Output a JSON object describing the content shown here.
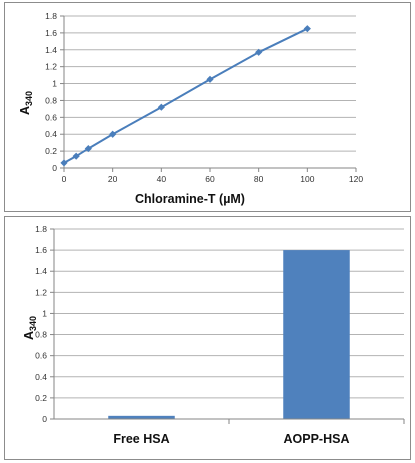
{
  "chart_data": [
    {
      "type": "line",
      "x": [
        0,
        5,
        10,
        20,
        40,
        60,
        80,
        100
      ],
      "series": [
        {
          "values": [
            0.06,
            0.14,
            0.23,
            0.4,
            0.72,
            1.05,
            1.37,
            1.65
          ]
        }
      ],
      "xlabel": "Chloramine-T (µM)",
      "ylabel_main": "A",
      "ylabel_sub": "340",
      "xlim": [
        0,
        120
      ],
      "ylim": [
        0,
        1.8
      ],
      "xticks": [
        "0",
        "20",
        "40",
        "60",
        "80",
        "100",
        "120"
      ],
      "yticks": [
        "0",
        "0.2",
        "0.4",
        "0.6",
        "0.8",
        "1",
        "1.2",
        "1.4",
        "1.6",
        "1.8"
      ],
      "grid": true,
      "colors": {
        "series": "#4a7ebb",
        "grid": "#b3b3b3",
        "axis": "#868686"
      }
    },
    {
      "type": "bar",
      "categories": [
        "Free HSA",
        "AOPP-HSA"
      ],
      "values": [
        0.03,
        1.6
      ],
      "ylabel_main": "A",
      "ylabel_sub": "340",
      "ylim": [
        0,
        1.8
      ],
      "yticks": [
        "0",
        "0.2",
        "0.4",
        "0.6",
        "0.8",
        "1",
        "1.2",
        "1.4",
        "1.6",
        "1.8"
      ],
      "grid": true,
      "colors": {
        "bar": "#4f81bd",
        "grid": "#b3b3b3",
        "axis": "#868686"
      }
    }
  ]
}
